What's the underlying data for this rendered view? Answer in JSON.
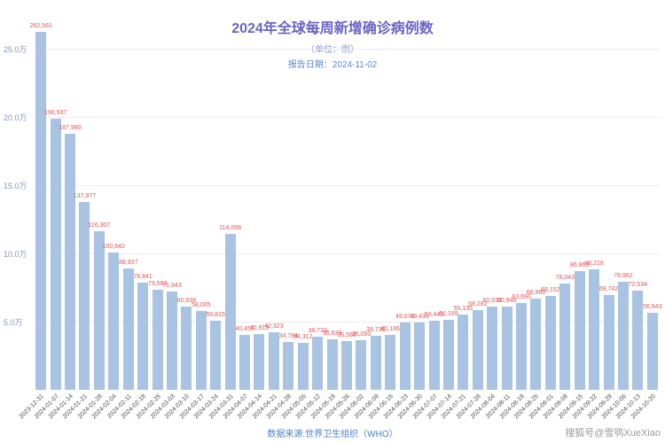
{
  "title": "2024年全球每周新增确诊病例数",
  "subtitle": "（单位：例）",
  "report_date": "报告日期：2024-11-02",
  "footer": "数据来源:世界卫生组织（WHO）",
  "watermark": "搜狐号@雪鸮XueXiao",
  "colors": {
    "title-color": "#6a63c4",
    "subtitle-color": "#8096d8",
    "report-color": "#5e88cf",
    "grid-color": "#ebebf2",
    "ytick-color": "#8a96bb",
    "bar-color": "#a9c3e3",
    "value-label-color": "#e25555",
    "xtick-color": "#4a4a4a",
    "footer-color": "#4c82cb",
    "watermark-color": "#9a9a9a"
  },
  "chart_data": {
    "type": "bar",
    "title": "2024年全球每周新增确诊病例数",
    "subtitle": "（单位：例）",
    "report_date": "2024-11-02",
    "source": "世界卫生组织（WHO）",
    "xlabel": "",
    "ylabel": "",
    "ylim": [
      0,
      270000
    ],
    "grid": true,
    "legend": false,
    "y_ticks": [
      {
        "value": 50000,
        "label": "5.0万"
      },
      {
        "value": 100000,
        "label": "10.0万"
      },
      {
        "value": 150000,
        "label": "15.0万"
      },
      {
        "value": 200000,
        "label": "20.0万"
      },
      {
        "value": 250000,
        "label": "25.0万"
      }
    ],
    "categories": [
      "2023-12-31",
      "2024-01-07",
      "2024-01-14",
      "2024-01-21",
      "2024-01-28",
      "2024-02-04",
      "2024-02-11",
      "2024-02-18",
      "2024-02-25",
      "2024-03-03",
      "2024-03-10",
      "2024-03-17",
      "2024-03-24",
      "2024-03-31",
      "2024-04-07",
      "2024-04-14",
      "2024-04-21",
      "2024-04-28",
      "2024-05-05",
      "2024-05-12",
      "2024-05-19",
      "2024-05-26",
      "2024-06-02",
      "2024-06-09",
      "2024-06-16",
      "2024-06-23",
      "2024-06-30",
      "2024-07-07",
      "2024-07-14",
      "2024-07-21",
      "2024-07-28",
      "2024-08-04",
      "2024-08-11",
      "2024-08-18",
      "2024-08-25",
      "2024-09-01",
      "2024-09-08",
      "2024-09-15",
      "2024-09-22",
      "2024-09-29",
      "2024-10-06",
      "2024-10-13",
      "2024-10-20"
    ],
    "values": [
      262561,
      198937,
      187980,
      137977,
      116307,
      100642,
      88937,
      78841,
      73583,
      71943,
      60938,
      58005,
      50815,
      114058,
      40452,
      40913,
      42323,
      34784,
      34312,
      38733,
      36833,
      35560,
      36093,
      39730,
      40186,
      49070,
      49431,
      50443,
      51189,
      55135,
      58282,
      60933,
      60946,
      63690,
      66960,
      69152,
      78043,
      86863,
      88218,
      69742,
      78962,
      72534,
      56643
    ],
    "value_labels": [
      "262,561",
      "198,937",
      "187,980",
      "137,977",
      "116,307",
      "100,642",
      "88,937",
      "78,841",
      "73,583",
      "71,943",
      "60,938",
      "58,005",
      "50,815",
      "114,058",
      "40,452",
      "40,913",
      "42,323",
      "34,784",
      "34,312",
      "38,733",
      "36,833",
      "35,560",
      "36,093",
      "39,730",
      "40,186",
      "49,070",
      "49,431",
      "50,443",
      "51,189",
      "55,135",
      "58,282",
      "60,933",
      "60,946",
      "63,690",
      "66,960",
      "69,152",
      "78,043",
      "86,863",
      "88,218",
      "69,742",
      "78,962",
      "72,534",
      "56,643"
    ]
  }
}
